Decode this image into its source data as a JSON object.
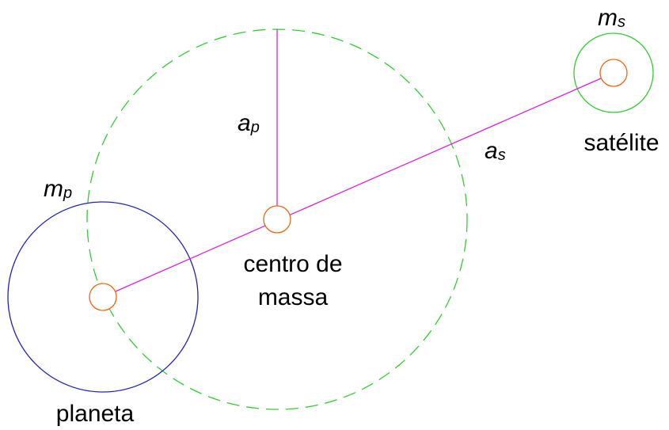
{
  "labels": {
    "satellite_mass": {
      "symbol": "m",
      "subscript": "s"
    },
    "planet_orbit": {
      "symbol": "a",
      "subscript": "p"
    },
    "satellite_orbit": {
      "symbol": "a",
      "subscript": "s"
    },
    "planet_mass": {
      "symbol": "m",
      "subscript": "p"
    },
    "satellite": "satélite",
    "center_of_mass": [
      "centro de",
      "massa"
    ],
    "planet": "planeta"
  }
}
